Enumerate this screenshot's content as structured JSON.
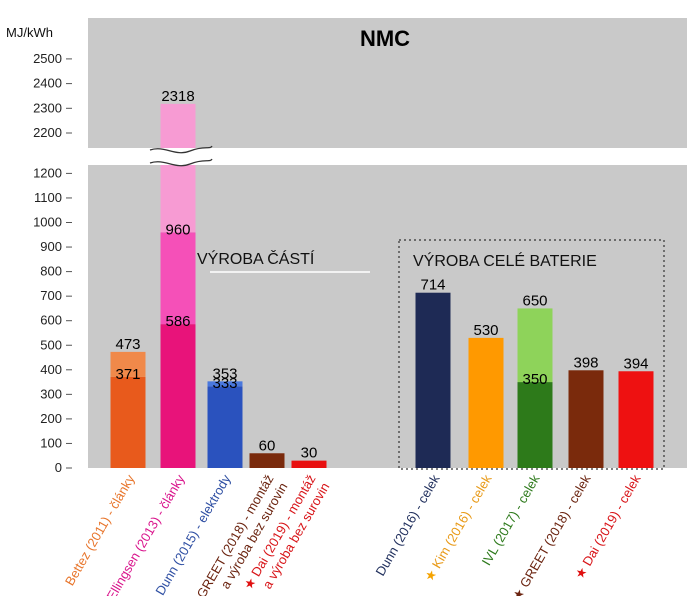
{
  "chart_data": {
    "type": "bar",
    "title": "NMC",
    "ylabel": "MJ/kWh",
    "ylim_lower": [
      0,
      1250
    ],
    "ylim_upper": [
      2150,
      2600
    ],
    "yticks_lower": [
      "0",
      "100",
      "200",
      "300",
      "400",
      "500",
      "600",
      "700",
      "800",
      "900",
      "1000",
      "1100",
      "1200"
    ],
    "yticks_upper": [
      "2200",
      "2300",
      "2400",
      "2500"
    ],
    "grid": false,
    "sections": [
      "VÝROBA ČÁSTÍ",
      "VÝROBA CELÉ BATERIE"
    ],
    "categories": [
      {
        "label": "Bettez (2011) - články",
        "marker": "",
        "color": "#e8762d",
        "marker_color": ""
      },
      {
        "label": "Ellingsen (2013) - články",
        "marker": "",
        "color": "#d9148c",
        "marker_color": ""
      },
      {
        "label": "Dunn (2015) - elektrody",
        "marker": "★",
        "color": "#2f4fa3",
        "marker_color": "#2f4fa3"
      },
      {
        "label": "GREET (2018) - montáž a výroba bez surovin",
        "marker": "★",
        "color": "#6b2410",
        "marker_color": "#6b2410"
      },
      {
        "label": "Dai (2019) - montáž a výroba bez surovin",
        "marker": "★",
        "color": "#d81418",
        "marker_color": "#e01010"
      },
      {
        "label": "Dunn (2016) - celek",
        "marker": "",
        "color": "#1f2e5c",
        "marker_color": ""
      },
      {
        "label": "Kim (2016) - celek",
        "marker": "★",
        "color": "#e89a18",
        "marker_color": "#f5a300"
      },
      {
        "label": "IVL (2017) - celek",
        "marker": "",
        "color": "#2e7a1c",
        "marker_color": ""
      },
      {
        "label": "GREET (2018) - celek",
        "marker": "★",
        "color": "#6b2410",
        "marker_color": "#6b2410"
      },
      {
        "label": "Dai (2019) - celek",
        "marker": "★",
        "color": "#d81418",
        "marker_color": "#e01010"
      }
    ],
    "bars": [
      {
        "segments": [
          {
            "from": 0,
            "to": 371,
            "color": "#e85a1c"
          },
          {
            "from": 371,
            "to": 473,
            "color": "#f0894a"
          }
        ],
        "labels": [
          {
            "value": "473",
            "at": 473,
            "pos": "above"
          },
          {
            "value": "371",
            "at": 371,
            "pos": "inside"
          }
        ]
      },
      {
        "segments": [
          {
            "from": 0,
            "to": 586,
            "color": "#e8137a"
          },
          {
            "from": 586,
            "to": 960,
            "color": "#f550b8"
          },
          {
            "from": 960,
            "to": 2318,
            "color": "#f79bd3"
          }
        ],
        "labels": [
          {
            "value": "2318",
            "at": 2318,
            "pos": "above"
          },
          {
            "value": "960",
            "at": 960,
            "pos": "inside"
          },
          {
            "value": "586",
            "at": 586,
            "pos": "inside"
          }
        ]
      },
      {
        "segments": [
          {
            "from": 0,
            "to": 333,
            "color": "#2a52be"
          },
          {
            "from": 333,
            "to": 353,
            "color": "#4a78dd"
          }
        ],
        "labels": [
          {
            "value": "353",
            "at": 353,
            "pos": "above"
          },
          {
            "value": "333",
            "at": 333,
            "pos": "inside"
          }
        ]
      },
      {
        "segments": [
          {
            "from": 0,
            "to": 60,
            "color": "#7a2a0c"
          }
        ],
        "labels": [
          {
            "value": "60",
            "at": 60,
            "pos": "above"
          }
        ]
      },
      {
        "segments": [
          {
            "from": 0,
            "to": 30,
            "color": "#e81010"
          }
        ],
        "labels": [
          {
            "value": "30",
            "at": 30,
            "pos": "above"
          }
        ]
      },
      {
        "segments": [
          {
            "from": 0,
            "to": 714,
            "color": "#1e2a55"
          }
        ],
        "labels": [
          {
            "value": "714",
            "at": 714,
            "pos": "above"
          }
        ]
      },
      {
        "segments": [
          {
            "from": 0,
            "to": 530,
            "color": "#ff9900"
          }
        ],
        "labels": [
          {
            "value": "530",
            "at": 530,
            "pos": "above"
          }
        ]
      },
      {
        "segments": [
          {
            "from": 0,
            "to": 350,
            "color": "#2d7a1a"
          },
          {
            "from": 350,
            "to": 650,
            "color": "#8ed35a"
          }
        ],
        "labels": [
          {
            "value": "650",
            "at": 650,
            "pos": "above"
          },
          {
            "value": "350",
            "at": 350,
            "pos": "inside"
          }
        ]
      },
      {
        "segments": [
          {
            "from": 0,
            "to": 398,
            "color": "#7a2a0c"
          }
        ],
        "labels": [
          {
            "value": "398",
            "at": 398,
            "pos": "above"
          }
        ]
      },
      {
        "segments": [
          {
            "from": 0,
            "to": 394,
            "color": "#ee1111"
          }
        ],
        "labels": [
          {
            "value": "394",
            "at": 394,
            "pos": "above"
          }
        ]
      }
    ],
    "colors": {
      "plot_bg": "#c9c9c9",
      "panel_bg": "#c9c9c9"
    }
  }
}
